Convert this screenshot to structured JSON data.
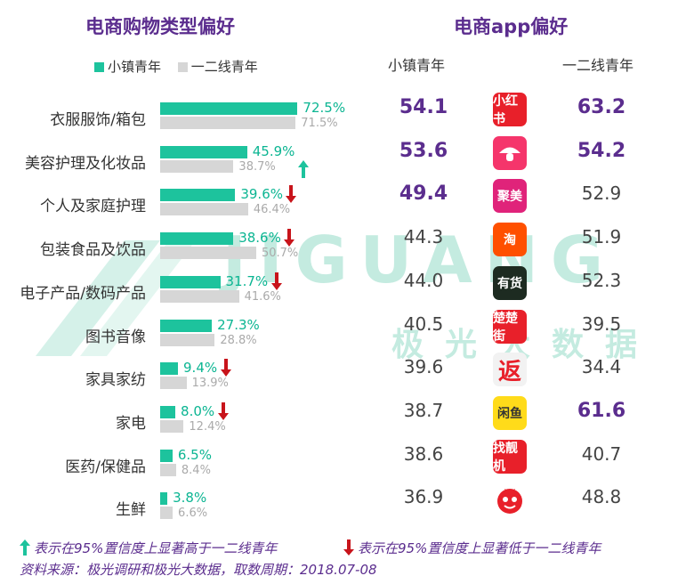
{
  "title_left": "电商购物类型偏好",
  "title_right": "电商app偏好",
  "legend": {
    "series_a": "小镇青年",
    "series_b": "一二线青年"
  },
  "colors": {
    "series_a": "#1dc39d",
    "series_b": "#d6d6d6",
    "title": "#5b2d8e",
    "up": "#1dc39d",
    "down": "#c8141b"
  },
  "watermark": {
    "brand": "JIGUANG",
    "cn": "极光大数据"
  },
  "chart_data": {
    "type": "bar",
    "orientation": "horizontal",
    "title": "电商购物类型偏好",
    "categories": [
      "衣服服饰/箱包",
      "美容护理及化妆品",
      "个人及家庭护理",
      "包装食品及饮品",
      "电子产品/数码产品",
      "图书音像",
      "家具家纺",
      "家电",
      "医药/保健品",
      "生鲜"
    ],
    "series": [
      {
        "name": "小镇青年",
        "values": [
          72.5,
          45.9,
          39.6,
          38.6,
          31.7,
          27.3,
          9.4,
          8.0,
          6.5,
          3.8
        ]
      },
      {
        "name": "一二线青年",
        "values": [
          71.5,
          38.7,
          46.4,
          50.7,
          41.6,
          28.8,
          13.9,
          12.4,
          8.4,
          6.6
        ]
      }
    ],
    "labels_a": [
      "72.5%",
      "45.9%",
      "39.6%",
      "38.6%",
      "31.7%",
      "27.3%",
      "9.4%",
      "8.0%",
      "6.5%",
      "3.8%"
    ],
    "labels_b": [
      "71.5%",
      "38.7%",
      "46.4%",
      "50.7%",
      "41.6%",
      "28.8%",
      "13.9%",
      "12.4%",
      "8.4%",
      "6.6%"
    ],
    "significance": [
      "none",
      "up",
      "down",
      "down",
      "down",
      "none",
      "down",
      "down",
      "none",
      "none"
    ],
    "xlim": [
      0,
      80
    ]
  },
  "apps": {
    "col_a": "小镇青年",
    "col_b": "一二线青年",
    "rows": [
      {
        "icon": "xiaohongshu-icon",
        "icon_text": "小红书",
        "color": "#e8202a",
        "a": "54.1",
        "b": "63.2",
        "a_bold": true,
        "b_bold": true
      },
      {
        "icon": "mogujie-icon",
        "icon_text": "",
        "color": "#f5356b",
        "a": "53.6",
        "b": "54.2",
        "a_bold": true,
        "b_bold": true
      },
      {
        "icon": "jumei-icon",
        "icon_text": "聚美",
        "color": "#e0237a",
        "a": "49.4",
        "b": "52.9",
        "a_bold": true,
        "b_bold": false
      },
      {
        "icon": "taobao-icon",
        "icon_text": "淘",
        "color": "#ff5000",
        "a": "44.3",
        "b": "51.9",
        "a_bold": false,
        "b_bold": false
      },
      {
        "icon": "youhuo-icon",
        "icon_text": "有货",
        "color": "#1d2b21",
        "a": "44.0",
        "b": "52.3",
        "a_bold": false,
        "b_bold": false
      },
      {
        "icon": "chuchujie-icon",
        "icon_text": "楚楚街",
        "color": "#e8202a",
        "a": "40.5",
        "b": "39.5",
        "a_bold": false,
        "b_bold": false
      },
      {
        "icon": "fanli-icon",
        "icon_text": "返",
        "color": "#f2f2f2",
        "a": "39.6",
        "b": "34.4",
        "a_bold": false,
        "b_bold": false
      },
      {
        "icon": "xianyu-icon",
        "icon_text": "闲鱼",
        "color": "#ffdb1a",
        "a": "38.7",
        "b": "61.6",
        "a_bold": false,
        "b_bold": true
      },
      {
        "icon": "zhuanzhuan-icon",
        "icon_text": "找靓机",
        "color": "#e8202a",
        "a": "38.6",
        "b": "40.7",
        "a_bold": false,
        "b_bold": false
      },
      {
        "icon": "pinduoduo-icon",
        "icon_text": "",
        "color": "#ffffff",
        "a": "36.9",
        "b": "48.8",
        "a_bold": false,
        "b_bold": false
      }
    ]
  },
  "footnotes": {
    "up": "表示在95%置信度上显著高于一二线青年",
    "down": "表示在95%置信度上显著低于一二线青年",
    "source": "资料来源：极光调研和极光大数据，取数周期：2018.07-08"
  }
}
